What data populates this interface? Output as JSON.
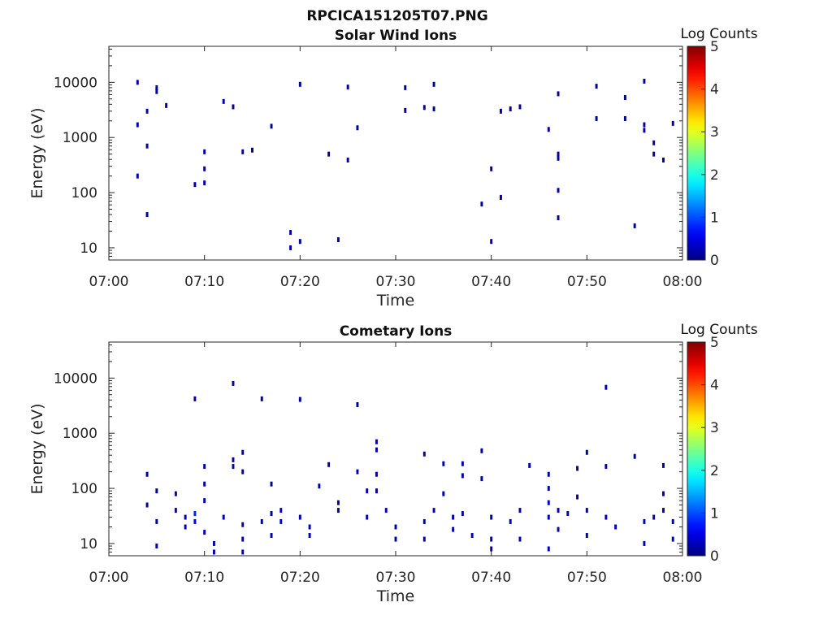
{
  "figure": {
    "title": "RPCICA151205T07.PNG"
  },
  "chart_data": [
    {
      "type": "heatmap",
      "title": "Solar Wind Ions",
      "xlabel": "Time",
      "ylabel": "Energy (eV)",
      "xlim": [
        "07:00",
        "08:00"
      ],
      "xticks": [
        "07:00",
        "07:10",
        "07:20",
        "07:30",
        "07:40",
        "07:50",
        "08:00"
      ],
      "yscale": "log",
      "ylim": [
        6,
        45000
      ],
      "yticks": [
        10,
        100,
        1000,
        10000
      ],
      "ytick_labels": [
        "10",
        "100",
        "1000",
        "10000"
      ],
      "colorbar": {
        "label": "Log Counts",
        "range": [
          0,
          5
        ],
        "ticks": [
          "0",
          "1",
          "2",
          "3",
          "4",
          "5"
        ],
        "colormap": "jet"
      },
      "points": [
        [
          "07:03",
          10000,
          0.2
        ],
        [
          "07:03",
          1700,
          0.2
        ],
        [
          "07:03",
          200,
          0.2
        ],
        [
          "07:04",
          40,
          0.2
        ],
        [
          "07:04",
          700,
          0.2
        ],
        [
          "07:04",
          3000,
          0.2
        ],
        [
          "07:05",
          8000,
          0.2
        ],
        [
          "07:05",
          6800,
          0.2
        ],
        [
          "07:06",
          3800,
          0.2
        ],
        [
          "07:10",
          550,
          0.2
        ],
        [
          "07:10",
          270,
          0.2
        ],
        [
          "07:10",
          150,
          0.2
        ],
        [
          "07:09",
          140,
          0.2
        ],
        [
          "07:12",
          4500,
          0.2
        ],
        [
          "07:13",
          3600,
          0.2
        ],
        [
          "07:14",
          550,
          0.2
        ],
        [
          "07:15",
          590,
          0.2
        ],
        [
          "07:17",
          1600,
          0.2
        ],
        [
          "07:19",
          10,
          0.2
        ],
        [
          "07:19",
          19,
          0.2
        ],
        [
          "07:20",
          9200,
          0.2
        ],
        [
          "07:20",
          13,
          0.2
        ],
        [
          "07:23",
          500,
          0.2
        ],
        [
          "07:24",
          14,
          0.2
        ],
        [
          "07:25",
          390,
          0.2
        ],
        [
          "07:25",
          8200,
          0.2
        ],
        [
          "07:26",
          1500,
          0.2
        ],
        [
          "07:31",
          8000,
          0.2
        ],
        [
          "07:31",
          3100,
          0.2
        ],
        [
          "07:33",
          3500,
          0.2
        ],
        [
          "07:34",
          9200,
          0.2
        ],
        [
          "07:34",
          3300,
          0.2
        ],
        [
          "07:39",
          62,
          0.2
        ],
        [
          "07:40",
          270,
          0.2
        ],
        [
          "07:40",
          13,
          0.2
        ],
        [
          "07:41",
          82,
          0.2
        ],
        [
          "07:41",
          3000,
          0.2
        ],
        [
          "07:42",
          3300,
          0.2
        ],
        [
          "07:43",
          3600,
          0.2
        ],
        [
          "07:46",
          1400,
          0.2
        ],
        [
          "07:47",
          110,
          0.2
        ],
        [
          "07:47",
          500,
          0.2
        ],
        [
          "07:47",
          420,
          0.2
        ],
        [
          "07:47",
          6200,
          0.2
        ],
        [
          "07:47",
          35,
          0.2
        ],
        [
          "07:51",
          2200,
          0.2
        ],
        [
          "07:51",
          8500,
          0.2
        ],
        [
          "07:54",
          5300,
          0.2
        ],
        [
          "07:54",
          2200,
          0.2
        ],
        [
          "07:55",
          25,
          0.2
        ],
        [
          "07:56",
          1350,
          0.2
        ],
        [
          "07:56",
          1700,
          0.2
        ],
        [
          "07:56",
          10500,
          0.2
        ],
        [
          "07:57",
          800,
          0.2
        ],
        [
          "07:57",
          500,
          0.2
        ],
        [
          "07:58",
          390,
          0.2
        ],
        [
          "07:59",
          1800,
          0.2
        ]
      ]
    },
    {
      "type": "heatmap",
      "title": "Cometary Ions",
      "xlabel": "Time",
      "ylabel": "Energy (eV)",
      "xlim": [
        "07:00",
        "08:00"
      ],
      "xticks": [
        "07:00",
        "07:10",
        "07:20",
        "07:30",
        "07:40",
        "07:50",
        "08:00"
      ],
      "yscale": "log",
      "ylim": [
        6,
        45000
      ],
      "yticks": [
        10,
        100,
        1000,
        10000
      ],
      "ytick_labels": [
        "10",
        "100",
        "1000",
        "10000"
      ],
      "colorbar": {
        "label": "Log Counts",
        "range": [
          0,
          5
        ],
        "ticks": [
          "0",
          "1",
          "2",
          "3",
          "4",
          "5"
        ],
        "colormap": "jet"
      },
      "points": [
        [
          "07:04",
          180,
          0.2
        ],
        [
          "07:05",
          90,
          0.2
        ],
        [
          "07:04",
          50,
          0.2
        ],
        [
          "07:05",
          25,
          0.2
        ],
        [
          "07:05",
          9,
          0.2
        ],
        [
          "07:07",
          80,
          0.2
        ],
        [
          "07:07",
          40,
          0.3
        ],
        [
          "07:08",
          30,
          0.3
        ],
        [
          "07:08",
          20,
          0.3
        ],
        [
          "07:09",
          35,
          0.8
        ],
        [
          "07:09",
          25,
          0.6
        ],
        [
          "07:09",
          4200,
          0.2
        ],
        [
          "07:10",
          250,
          0.2
        ],
        [
          "07:10",
          120,
          0.2
        ],
        [
          "07:10",
          60,
          0.3
        ],
        [
          "07:10",
          16,
          0.3
        ],
        [
          "07:11",
          10,
          0.3
        ],
        [
          "07:11",
          7,
          0.3
        ],
        [
          "07:12",
          30,
          0.2
        ],
        [
          "07:13",
          250,
          0.2
        ],
        [
          "07:13",
          330,
          0.2
        ],
        [
          "07:13",
          8000,
          0.2
        ],
        [
          "07:14",
          450,
          0.2
        ],
        [
          "07:14",
          200,
          0.2
        ],
        [
          "07:14",
          22,
          0.3
        ],
        [
          "07:14",
          12,
          0.3
        ],
        [
          "07:14",
          7,
          0.3
        ],
        [
          "07:16",
          4200,
          0.2
        ],
        [
          "07:16",
          25,
          0.3
        ],
        [
          "07:17",
          120,
          0.2
        ],
        [
          "07:17",
          35,
          0.3
        ],
        [
          "07:17",
          14,
          0.3
        ],
        [
          "07:18",
          25,
          0.4
        ],
        [
          "07:18",
          40,
          0.3
        ],
        [
          "07:20",
          4100,
          0.2
        ],
        [
          "07:20",
          30,
          0.3
        ],
        [
          "07:21",
          14,
          0.3
        ],
        [
          "07:21",
          20,
          0.3
        ],
        [
          "07:22",
          110,
          0.2
        ],
        [
          "07:23",
          270,
          0.2
        ],
        [
          "07:24",
          55,
          0.2
        ],
        [
          "07:24",
          40,
          0.2
        ],
        [
          "07:26",
          3300,
          0.2
        ],
        [
          "07:26",
          200,
          0.2
        ],
        [
          "07:27",
          90,
          0.2
        ],
        [
          "07:27",
          30,
          0.3
        ],
        [
          "07:28",
          700,
          0.2
        ],
        [
          "07:28",
          500,
          0.2
        ],
        [
          "07:28",
          180,
          0.2
        ],
        [
          "07:28",
          90,
          0.2
        ],
        [
          "07:29",
          40,
          0.3
        ],
        [
          "07:30",
          20,
          0.3
        ],
        [
          "07:30",
          12,
          0.3
        ],
        [
          "07:33",
          420,
          0.2
        ],
        [
          "07:33",
          25,
          0.3
        ],
        [
          "07:33",
          12,
          0.3
        ],
        [
          "07:34",
          40,
          0.3
        ],
        [
          "07:35",
          280,
          0.2
        ],
        [
          "07:35",
          80,
          0.2
        ],
        [
          "07:36",
          30,
          0.3
        ],
        [
          "07:36",
          18,
          0.3
        ],
        [
          "07:37",
          280,
          0.2
        ],
        [
          "07:37",
          170,
          0.2
        ],
        [
          "07:37",
          35,
          0.3
        ],
        [
          "07:38",
          14,
          0.3
        ],
        [
          "07:39",
          480,
          0.2
        ],
        [
          "07:39",
          150,
          0.2
        ],
        [
          "07:40",
          30,
          0.3
        ],
        [
          "07:40",
          12,
          0.3
        ],
        [
          "07:40",
          8,
          0.3
        ],
        [
          "07:42",
          25,
          0.3
        ],
        [
          "07:43",
          40,
          0.3
        ],
        [
          "07:43",
          12,
          0.3
        ],
        [
          "07:44",
          260,
          0.2
        ],
        [
          "07:46",
          180,
          0.2
        ],
        [
          "07:46",
          100,
          0.2
        ],
        [
          "07:46",
          55,
          0.3
        ],
        [
          "07:46",
          30,
          0.3
        ],
        [
          "07:46",
          8,
          0.3
        ],
        [
          "07:47",
          40,
          0.3
        ],
        [
          "07:47",
          18,
          0.3
        ],
        [
          "07:48",
          35,
          0.3
        ],
        [
          "07:49",
          230,
          0.2
        ],
        [
          "07:49",
          70,
          0.2
        ],
        [
          "07:50",
          40,
          0.3
        ],
        [
          "07:50",
          14,
          0.3
        ],
        [
          "07:50",
          450,
          0.2
        ],
        [
          "07:52",
          6800,
          0.2
        ],
        [
          "07:52",
          250,
          0.2
        ],
        [
          "07:52",
          30,
          0.3
        ],
        [
          "07:53",
          20,
          0.3
        ],
        [
          "07:55",
          380,
          0.2
        ],
        [
          "07:56",
          25,
          0.3
        ],
        [
          "07:56",
          10,
          0.3
        ],
        [
          "07:57",
          30,
          0.3
        ],
        [
          "07:58",
          260,
          0.2
        ],
        [
          "07:58",
          80,
          0.2
        ],
        [
          "07:58",
          40,
          0.3
        ],
        [
          "07:59",
          25,
          0.3
        ],
        [
          "07:59",
          12,
          0.3
        ]
      ]
    }
  ]
}
